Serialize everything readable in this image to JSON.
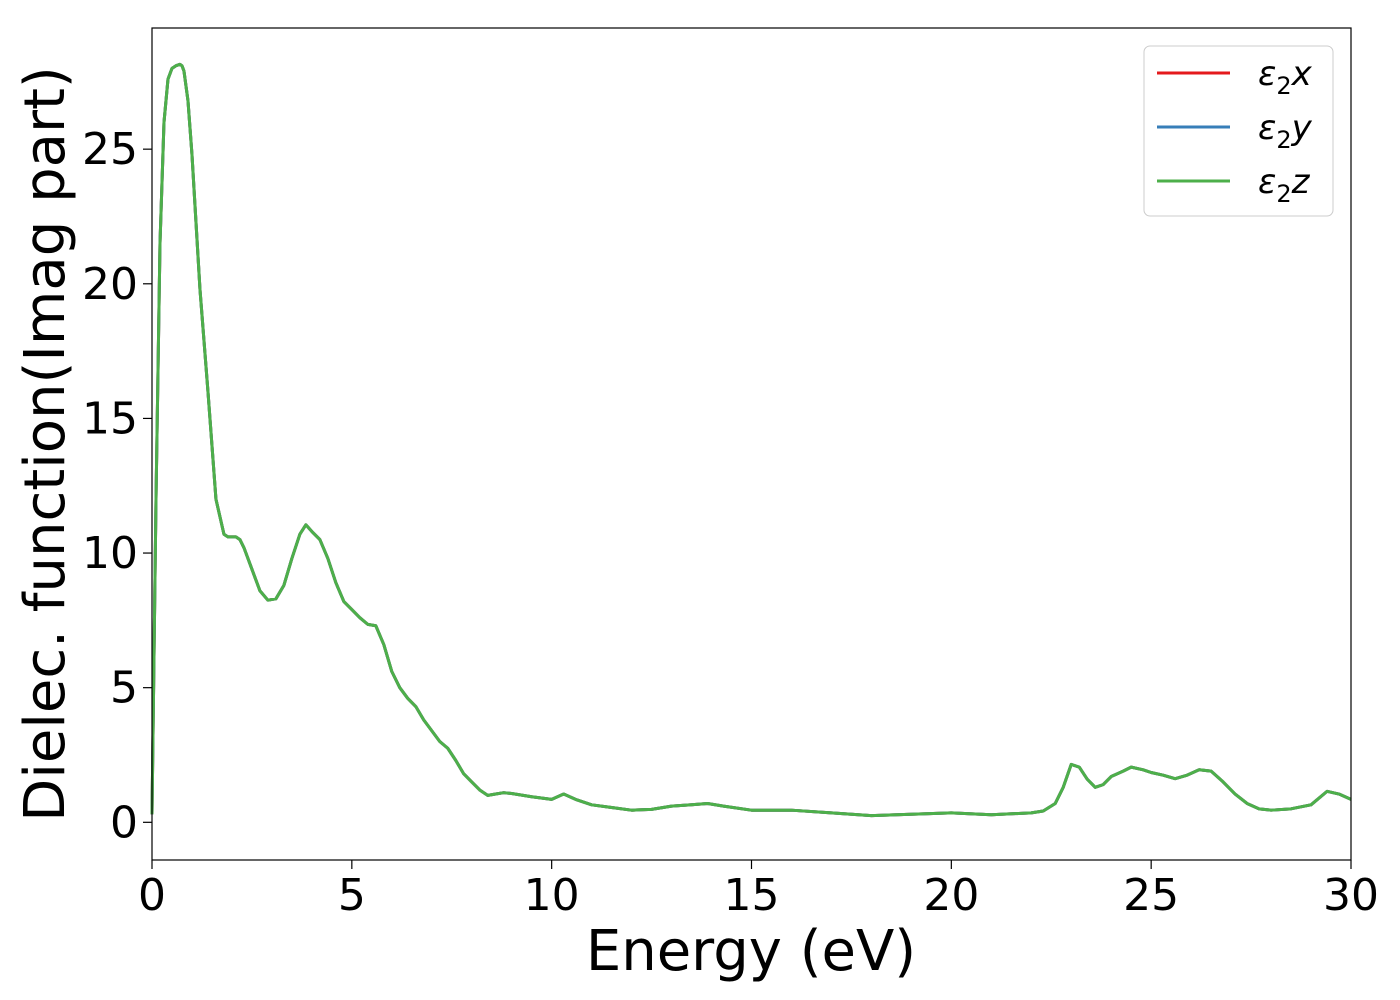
{
  "chart_data": {
    "type": "line",
    "title": "",
    "xlabel": "Energy (eV)",
    "ylabel": "Dielec. function(Imag part)",
    "xlim": [
      0,
      30
    ],
    "ylim": [
      -1.4,
      29.5
    ],
    "xticks": [
      0,
      5,
      10,
      15,
      20,
      25,
      30
    ],
    "yticks": [
      0,
      5,
      10,
      15,
      20,
      25
    ],
    "grid": false,
    "legend_position": "top-right",
    "series": [
      {
        "name": "ε₂x",
        "legend_base": "ε",
        "legend_sub": "2",
        "legend_var": "x",
        "color": "#e41a1c"
      },
      {
        "name": "ε₂y",
        "legend_base": "ε",
        "legend_sub": "2",
        "legend_var": "y",
        "color": "#377eb8"
      },
      {
        "name": "ε₂z",
        "legend_base": "ε",
        "legend_sub": "2",
        "legend_var": "z",
        "color": "#4daf4a"
      }
    ],
    "x": [
      0,
      0.1,
      0.2,
      0.3,
      0.4,
      0.5,
      0.6,
      0.7,
      0.75,
      0.8,
      0.9,
      1.0,
      1.1,
      1.2,
      1.4,
      1.6,
      1.8,
      1.9,
      2.0,
      2.1,
      2.2,
      2.3,
      2.5,
      2.7,
      2.9,
      3.1,
      3.3,
      3.5,
      3.7,
      3.85,
      4.0,
      4.2,
      4.4,
      4.6,
      4.8,
      5.0,
      5.2,
      5.4,
      5.6,
      5.8,
      6.0,
      6.2,
      6.4,
      6.6,
      6.8,
      7.0,
      7.2,
      7.4,
      7.6,
      7.8,
      8.0,
      8.2,
      8.4,
      8.6,
      8.8,
      9.0,
      9.5,
      10.0,
      10.3,
      10.6,
      11.0,
      11.5,
      12.0,
      12.5,
      13.0,
      13.5,
      13.9,
      14.3,
      15.0,
      16.0,
      17.0,
      18.0,
      19.0,
      20.0,
      21.0,
      22.0,
      22.3,
      22.6,
      22.8,
      23.0,
      23.2,
      23.4,
      23.6,
      23.8,
      24.0,
      24.3,
      24.5,
      24.8,
      25.0,
      25.3,
      25.6,
      25.9,
      26.2,
      26.5,
      26.8,
      27.1,
      27.4,
      27.7,
      28.0,
      28.5,
      29.0,
      29.4,
      29.7,
      30.0
    ],
    "values": [
      0.3,
      12.0,
      21.5,
      26.0,
      27.6,
      28.0,
      28.1,
      28.15,
      28.1,
      27.9,
      26.8,
      24.8,
      22.3,
      19.8,
      16.0,
      12.0,
      10.7,
      10.6,
      10.6,
      10.6,
      10.5,
      10.2,
      9.4,
      8.6,
      8.25,
      8.3,
      8.8,
      9.8,
      10.7,
      11.05,
      10.8,
      10.5,
      9.8,
      8.9,
      8.2,
      7.9,
      7.6,
      7.35,
      7.3,
      6.6,
      5.6,
      5.0,
      4.6,
      4.3,
      3.8,
      3.4,
      3.0,
      2.75,
      2.3,
      1.8,
      1.5,
      1.2,
      1.0,
      1.05,
      1.1,
      1.07,
      0.95,
      0.85,
      1.05,
      0.85,
      0.65,
      0.55,
      0.45,
      0.48,
      0.6,
      0.65,
      0.7,
      0.6,
      0.45,
      0.45,
      0.35,
      0.25,
      0.3,
      0.35,
      0.28,
      0.35,
      0.42,
      0.7,
      1.3,
      2.15,
      2.05,
      1.6,
      1.3,
      1.4,
      1.7,
      1.9,
      2.05,
      1.95,
      1.85,
      1.75,
      1.62,
      1.75,
      1.95,
      1.9,
      1.5,
      1.05,
      0.7,
      0.5,
      0.45,
      0.5,
      0.65,
      1.15,
      1.05,
      0.85
    ]
  }
}
